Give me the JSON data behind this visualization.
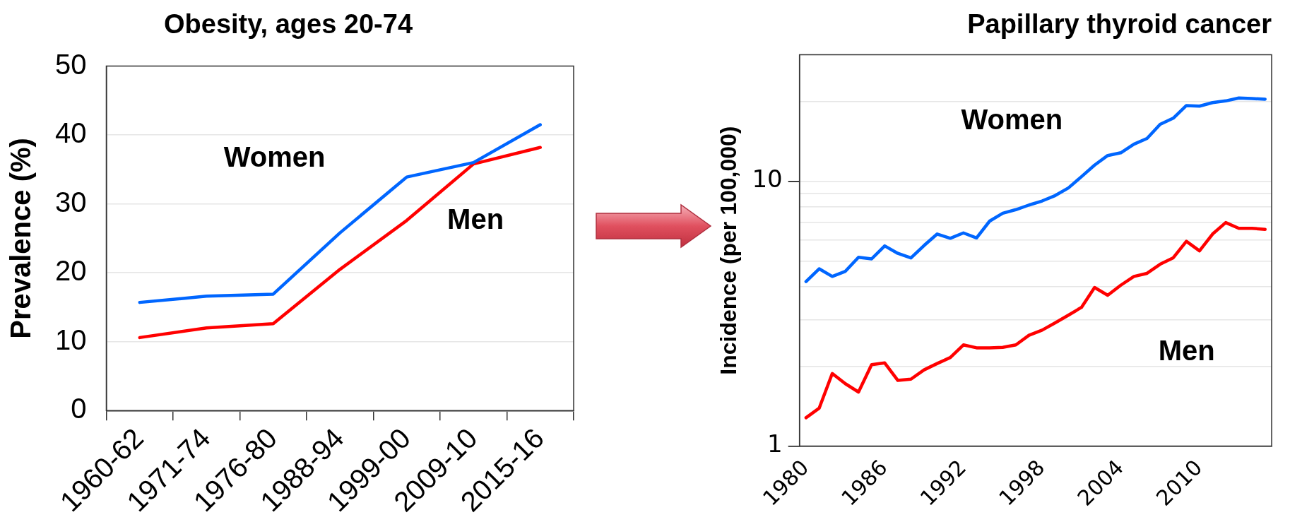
{
  "chart_data": [
    {
      "type": "line",
      "title": "Obesity, ages 20-74",
      "ylabel": "Prevalence (%)",
      "categories": [
        "1960-62",
        "1971-74",
        "1976-80",
        "1988-94",
        "1999-00",
        "2009-10",
        "2015-16"
      ],
      "series": [
        {
          "name": "Women",
          "color": "#0066ff",
          "values": [
            15.7,
            16.6,
            16.9,
            25.8,
            33.9,
            36.0,
            41.5
          ]
        },
        {
          "name": "Men",
          "color": "#ff0000",
          "values": [
            10.6,
            12.0,
            12.6,
            20.5,
            27.6,
            35.8,
            38.2
          ]
        }
      ],
      "ylim": [
        0,
        50
      ],
      "yticks": [
        0,
        10,
        20,
        30,
        40,
        50
      ],
      "grid": "y",
      "legend": false
    },
    {
      "type": "line",
      "title": "Papillary thyroid cancer",
      "ylabel": "Incidence (per 100,000)",
      "log": "y",
      "x": [
        1980,
        1981,
        1982,
        1983,
        1984,
        1985,
        1986,
        1987,
        1988,
        1989,
        1990,
        1991,
        1992,
        1993,
        1994,
        1995,
        1996,
        1997,
        1998,
        1999,
        2000,
        2001,
        2002,
        2003,
        2004,
        2005,
        2006,
        2007,
        2008,
        2009,
        2010,
        2011,
        2012,
        2013,
        2014,
        2015
      ],
      "series": [
        {
          "name": "Women",
          "color": "#0066ff",
          "values": [
            4.18,
            4.67,
            4.37,
            4.57,
            5.16,
            5.09,
            5.7,
            5.34,
            5.13,
            5.72,
            6.32,
            6.09,
            6.38,
            6.11,
            7.07,
            7.57,
            7.81,
            8.13,
            8.42,
            8.83,
            9.43,
            10.4,
            11.5,
            12.5,
            12.8,
            13.8,
            14.5,
            16.4,
            17.3,
            19.3,
            19.2,
            19.8,
            20.1,
            20.6,
            20.5,
            20.4
          ]
        },
        {
          "name": "Men",
          "color": "#ff0000",
          "values": [
            1.28,
            1.39,
            1.88,
            1.72,
            1.6,
            2.03,
            2.06,
            1.77,
            1.79,
            1.94,
            2.05,
            2.16,
            2.41,
            2.35,
            2.35,
            2.36,
            2.41,
            2.62,
            2.74,
            2.92,
            3.12,
            3.34,
            3.97,
            3.71,
            4.05,
            4.37,
            4.49,
            4.86,
            5.14,
            5.93,
            5.46,
            6.32,
            6.98,
            6.64,
            6.64,
            6.58
          ]
        }
      ],
      "xlim": [
        1979.5,
        2015.5
      ],
      "xticks": [
        1980,
        1986,
        1992,
        1998,
        2004,
        2010
      ],
      "ylim": [
        1,
        30
      ],
      "yticks": [
        1,
        {
          "value": 2,
          "label": null
        },
        {
          "value": 3,
          "label": null
        },
        {
          "value": 4,
          "label": null
        },
        {
          "value": 5,
          "label": null
        },
        {
          "value": 6,
          "label": null
        },
        {
          "value": 7,
          "label": null
        },
        {
          "value": 8,
          "label": null
        },
        {
          "value": 9,
          "label": null
        },
        10,
        {
          "value": 20,
          "label": null
        }
      ],
      "grid": "y",
      "legend": false
    }
  ]
}
